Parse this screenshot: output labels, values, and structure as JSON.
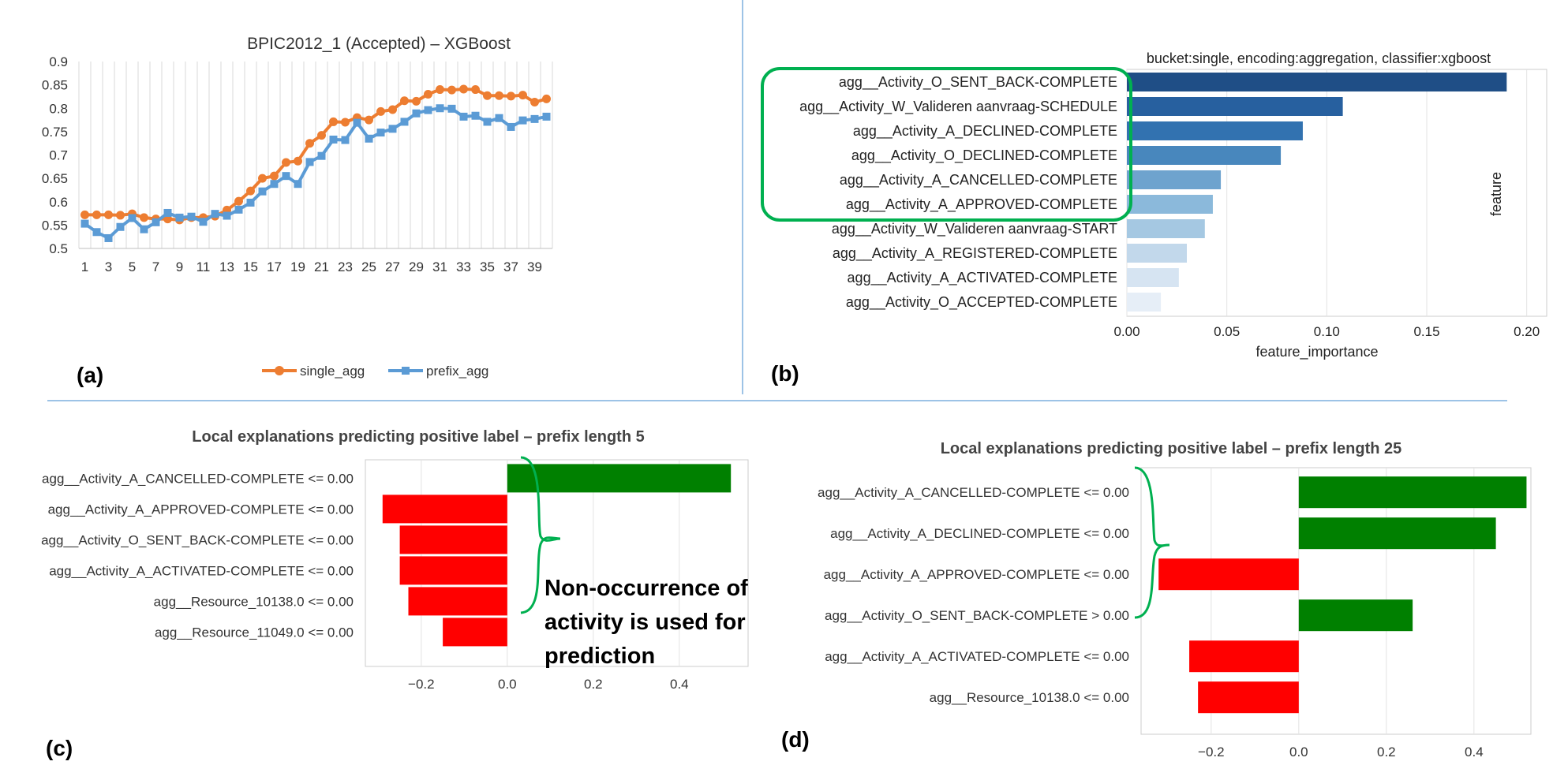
{
  "panel_labels": {
    "a": "(a)",
    "b": "(b)",
    "c": "(c)",
    "d": "(d)"
  },
  "annotation": {
    "line1": "Non-occurrence of",
    "line2": "activity is used for",
    "line3": "prediction"
  },
  "colors": {
    "single_agg": "#ED7D31",
    "prefix_agg": "#5B9BD5",
    "positive": "#008000",
    "negative": "#FF0000",
    "highlight": "#00B050",
    "divider": "#9DC3E6"
  },
  "chart_data": [
    {
      "type": "line",
      "title": "BPIC2012_1 (Accepted) – XGBoost",
      "x": [
        1,
        2,
        3,
        4,
        5,
        6,
        7,
        8,
        9,
        10,
        11,
        12,
        13,
        14,
        15,
        16,
        17,
        18,
        19,
        20,
        21,
        22,
        23,
        24,
        25,
        26,
        27,
        28,
        29,
        30,
        31,
        32,
        33,
        34,
        35,
        36,
        37,
        38,
        39,
        40
      ],
      "x_tick_labels": [
        "1",
        "3",
        "5",
        "7",
        "9",
        "11",
        "13",
        "15",
        "17",
        "19",
        "21",
        "23",
        "25",
        "27",
        "29",
        "31",
        "33",
        "35",
        "37",
        "39"
      ],
      "y_tick_labels": [
        "0.5",
        "0.55",
        "0.6",
        "0.65",
        "0.7",
        "0.75",
        "0.8",
        "0.85",
        "0.9"
      ],
      "ylim": [
        0.5,
        0.9
      ],
      "legend_position": "bottom",
      "series": [
        {
          "name": "single_agg",
          "values": [
            0.572,
            0.572,
            0.572,
            0.571,
            0.574,
            0.566,
            0.563,
            0.563,
            0.561,
            0.566,
            0.566,
            0.569,
            0.582,
            0.601,
            0.623,
            0.65,
            0.655,
            0.684,
            0.687,
            0.725,
            0.742,
            0.771,
            0.77,
            0.78,
            0.775,
            0.793,
            0.797,
            0.816,
            0.815,
            0.83,
            0.84,
            0.839,
            0.841,
            0.84,
            0.827,
            0.827,
            0.826,
            0.828,
            0.813,
            0.82
          ]
        },
        {
          "name": "prefix_agg",
          "values": [
            0.553,
            0.535,
            0.522,
            0.546,
            0.565,
            0.541,
            0.556,
            0.576,
            0.566,
            0.568,
            0.557,
            0.574,
            0.57,
            0.583,
            0.598,
            0.622,
            0.638,
            0.655,
            0.638,
            0.685,
            0.698,
            0.733,
            0.732,
            0.769,
            0.735,
            0.748,
            0.756,
            0.771,
            0.789,
            0.796,
            0.8,
            0.799,
            0.782,
            0.784,
            0.771,
            0.779,
            0.76,
            0.774,
            0.777,
            0.782
          ]
        }
      ]
    },
    {
      "type": "bar",
      "orientation": "horizontal",
      "title": "bucket:single, encoding:aggregation, classifier:xgboost",
      "xlabel": "feature_importance",
      "ylabel": "feature",
      "categories": [
        "agg__Activity_O_SENT_BACK-COMPLETE",
        "agg__Activity_W_Valideren aanvraag-SCHEDULE",
        "agg__Activity_A_DECLINED-COMPLETE",
        "agg__Activity_O_DECLINED-COMPLETE",
        "agg__Activity_A_CANCELLED-COMPLETE",
        "agg__Activity_A_APPROVED-COMPLETE",
        "agg__Activity_W_Valideren aanvraag-START",
        "agg__Activity_A_REGISTERED-COMPLETE",
        "agg__Activity_A_ACTIVATED-COMPLETE",
        "agg__Activity_O_ACCEPTED-COMPLETE"
      ],
      "values": [
        0.19,
        0.108,
        0.088,
        0.077,
        0.047,
        0.043,
        0.039,
        0.03,
        0.026,
        0.017
      ],
      "bar_colors": [
        "#1F4E86",
        "#27609F",
        "#3272B0",
        "#4887BD",
        "#6EA3CE",
        "#8BB9DB",
        "#A5C8E2",
        "#C2D8EB",
        "#D6E4F2",
        "#E6EEF7"
      ],
      "x_tick_labels": [
        "0.00",
        "0.05",
        "0.10",
        "0.15",
        "0.20"
      ],
      "xlim": [
        0,
        0.2
      ],
      "grid": true
    },
    {
      "type": "bar",
      "orientation": "horizontal",
      "title": "Local explanations predicting positive label – prefix length 5",
      "categories": [
        "agg__Activity_A_CANCELLED-COMPLETE <= 0.00",
        "agg__Activity_A_APPROVED-COMPLETE <= 0.00",
        "agg__Activity_O_SENT_BACK-COMPLETE <= 0.00",
        "agg__Activity_A_ACTIVATED-COMPLETE <= 0.00",
        "agg__Resource_10138.0 <= 0.00",
        "agg__Resource_11049.0 <= 0.00"
      ],
      "values": [
        0.52,
        -0.29,
        -0.25,
        -0.25,
        -0.23,
        -0.15
      ],
      "x_tick_labels": [
        "−0.2",
        "0.0",
        "0.2",
        "0.4"
      ],
      "xlim": [
        -0.33,
        0.56
      ],
      "grid": true
    },
    {
      "type": "bar",
      "orientation": "horizontal",
      "title": "Local explanations predicting positive label – prefix length 25",
      "categories": [
        "agg__Activity_A_CANCELLED-COMPLETE <= 0.00",
        "agg__Activity_A_DECLINED-COMPLETE <= 0.00",
        "agg__Activity_A_APPROVED-COMPLETE <= 0.00",
        "agg__Activity_O_SENT_BACK-COMPLETE > 0.00",
        "agg__Activity_A_ACTIVATED-COMPLETE <= 0.00",
        "agg__Resource_10138.0 <= 0.00"
      ],
      "values": [
        0.52,
        0.45,
        -0.32,
        0.26,
        -0.25,
        -0.23
      ],
      "x_tick_labels": [
        "−0.2",
        "0.0",
        "0.2",
        "0.4"
      ],
      "xlim": [
        -0.36,
        0.53
      ],
      "grid": true
    }
  ]
}
